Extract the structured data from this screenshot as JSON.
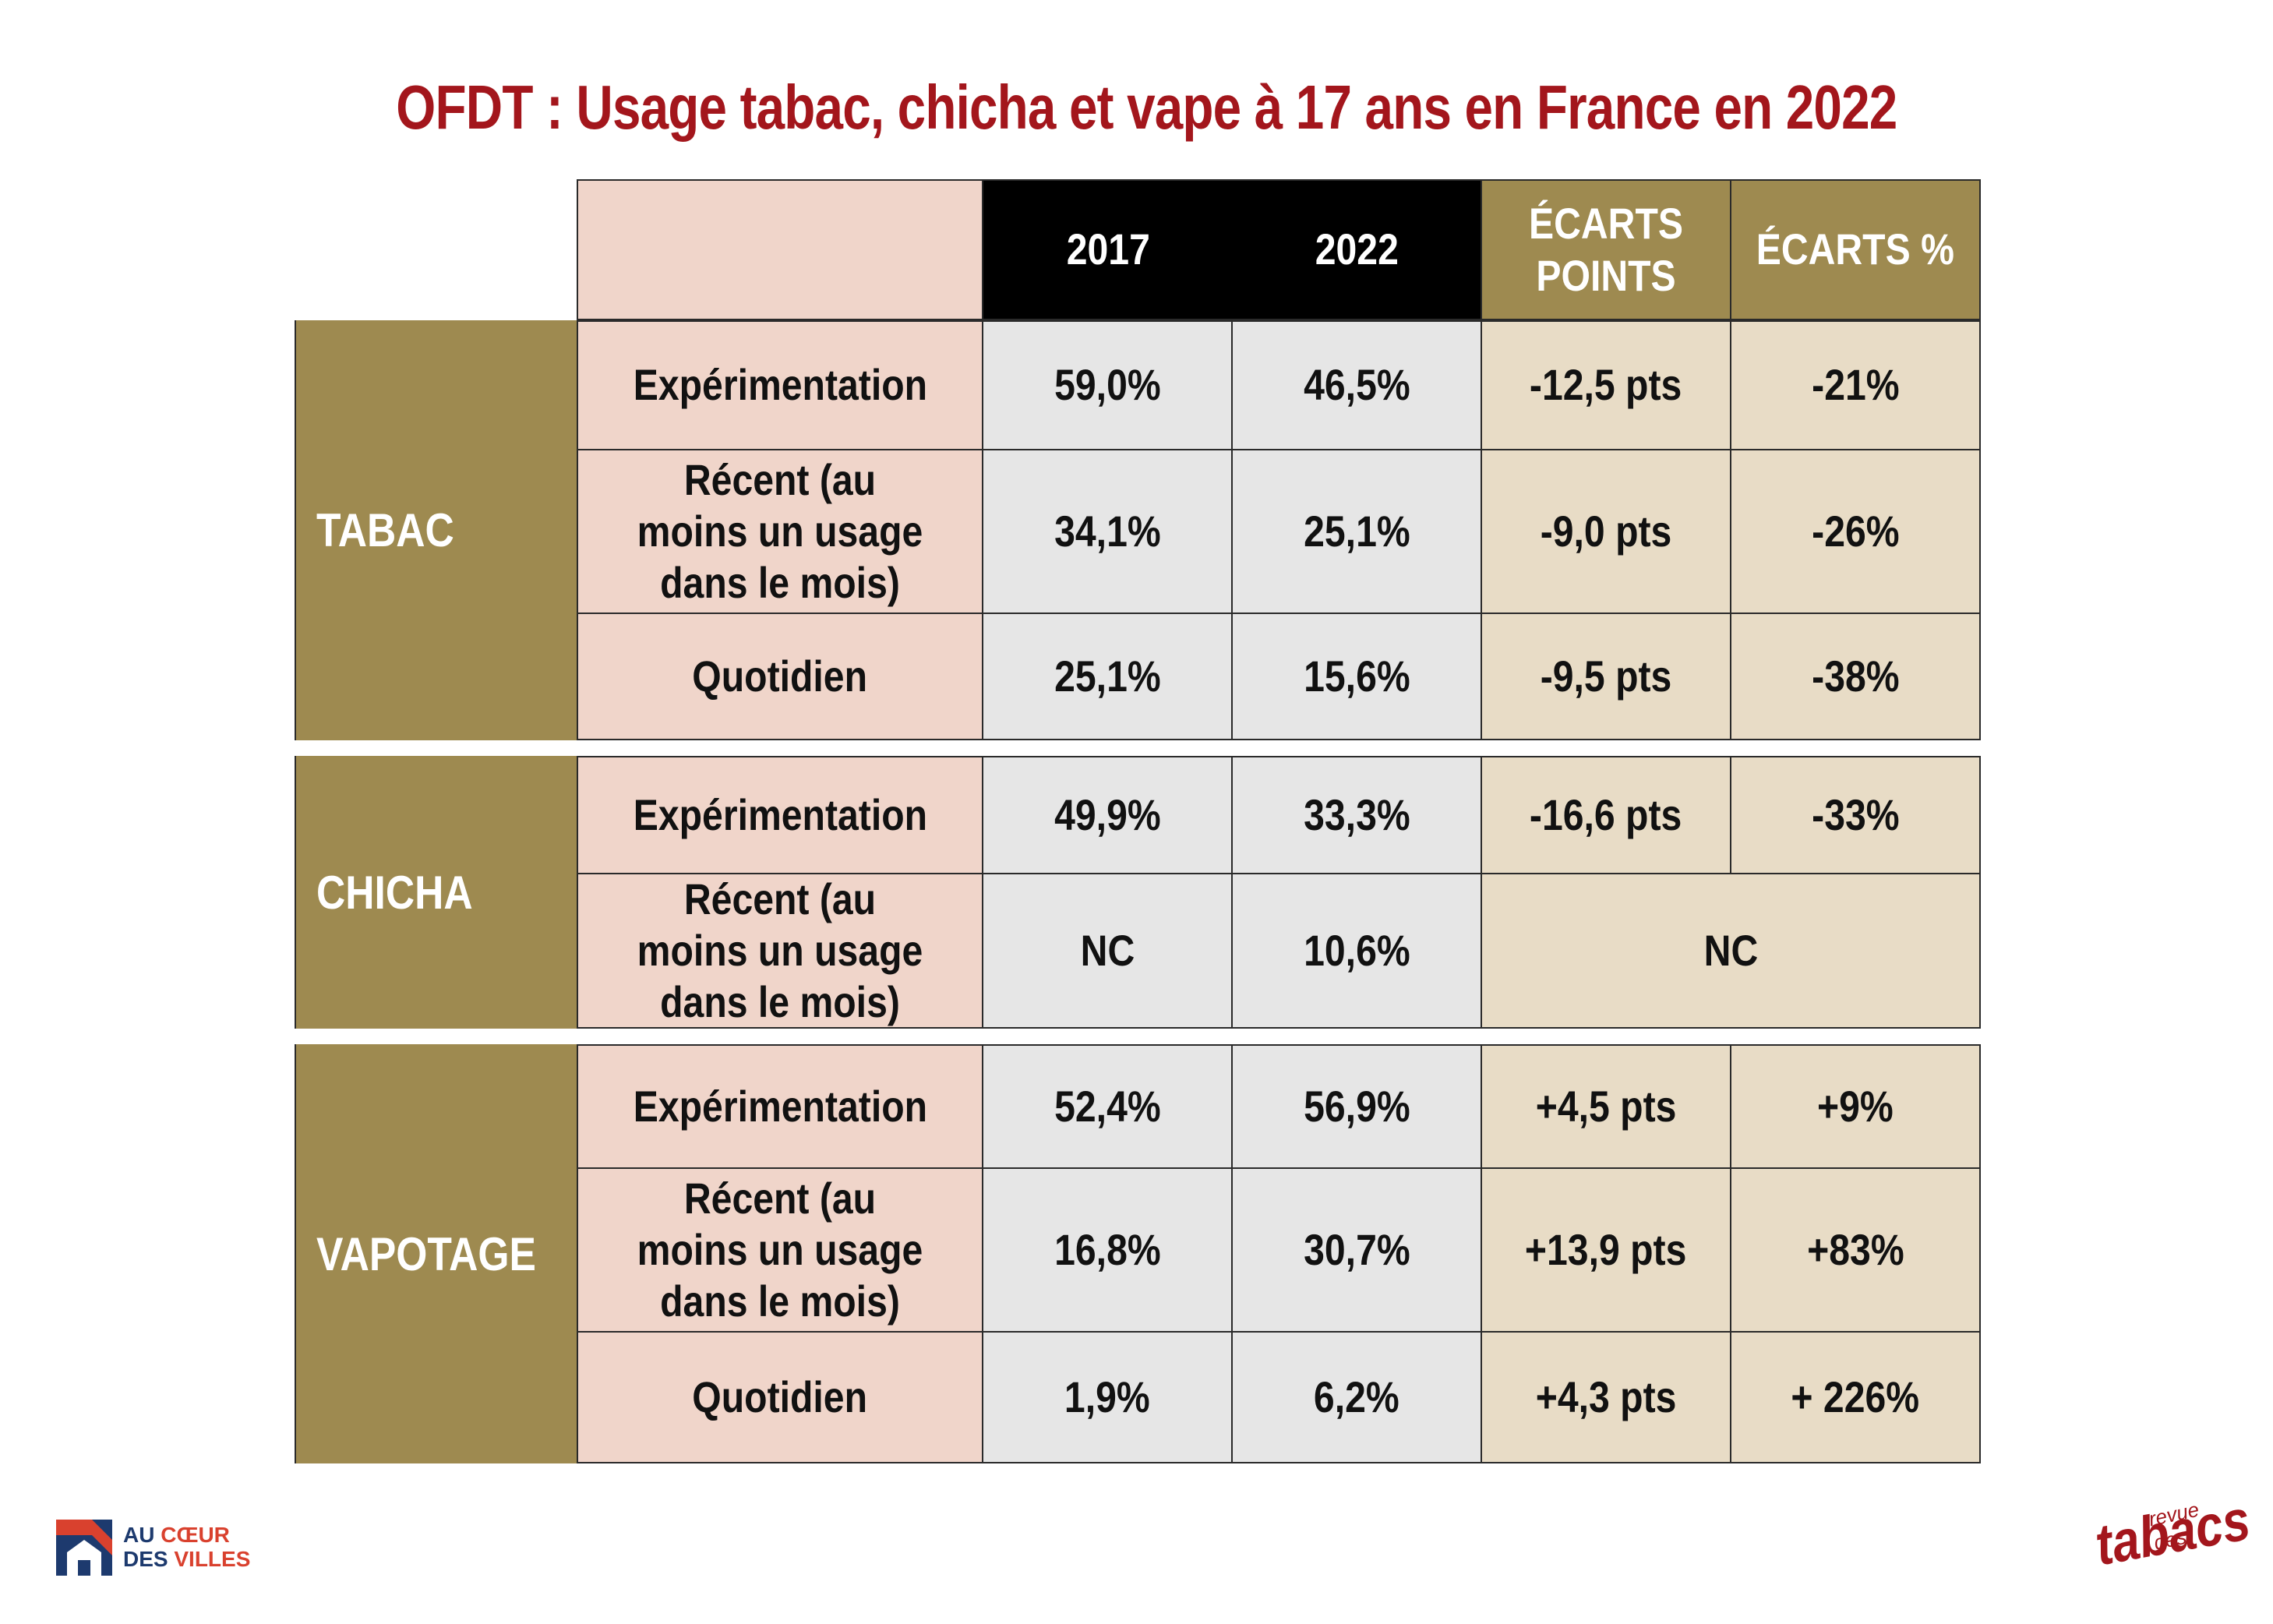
{
  "title": "OFDT : Usage tabac, chicha et vape à 17 ans en France en 2022",
  "chart_data": {
    "type": "table",
    "title": "OFDT : Usage tabac, chicha et vape à 17 ans en France en 2022",
    "columns": [
      "2017",
      "2022",
      "ÉCARTS POINTS",
      "ÉCARTS %"
    ],
    "groups": [
      {
        "name": "TABAC",
        "rows": [
          {
            "label": "Expérimentation",
            "v2017": "59,0%",
            "v2022": "46,5%",
            "ecart_points": "-12,5 pts",
            "ecart_pct": "-21%"
          },
          {
            "label": "Récent (au moins un usage dans le mois)",
            "v2017": "34,1%",
            "v2022": "25,1%",
            "ecart_points": "-9,0 pts",
            "ecart_pct": "-26%"
          },
          {
            "label": "Quotidien",
            "v2017": "25,1%",
            "v2022": "15,6%",
            "ecart_points": "-9,5 pts",
            "ecart_pct": "-38%"
          }
        ]
      },
      {
        "name": "CHICHA",
        "rows": [
          {
            "label": "Expérimentation",
            "v2017": "49,9%",
            "v2022": "33,3%",
            "ecart_points": "-16,6 pts",
            "ecart_pct": "-33%"
          },
          {
            "label": "Récent (au moins un usage dans le mois)",
            "v2017": "NC",
            "v2022": "10,6%",
            "ecart_merged": "NC"
          }
        ]
      },
      {
        "name": "VAPOTAGE",
        "rows": [
          {
            "label": "Expérimentation",
            "v2017": "52,4%",
            "v2022": "56,9%",
            "ecart_points": "+4,5 pts",
            "ecart_pct": "+9%"
          },
          {
            "label": "Récent (au moins un usage dans le mois)",
            "v2017": "16,8%",
            "v2022": "30,7%",
            "ecart_points": "+13,9 pts",
            "ecart_pct": "+83%"
          },
          {
            "label": "Quotidien",
            "v2017": "1,9%",
            "v2022": "6,2%",
            "ecart_points": "+4,3 pts",
            "ecart_pct": "+ 226%"
          }
        ]
      }
    ]
  },
  "logos": {
    "left": {
      "line1_a": "AU ",
      "line1_b": "CŒUR",
      "line2_a": "DES ",
      "line2_b": "VILLES"
    },
    "right": {
      "small": "revue des",
      "big": "tabacs"
    }
  },
  "colors": {
    "title": "#a3161c",
    "gold": "#9e8a50",
    "pink": "#f0d5ca",
    "gray": "#e6e6e6",
    "beige": "#e8dcc6",
    "header_dark": "#000000"
  }
}
